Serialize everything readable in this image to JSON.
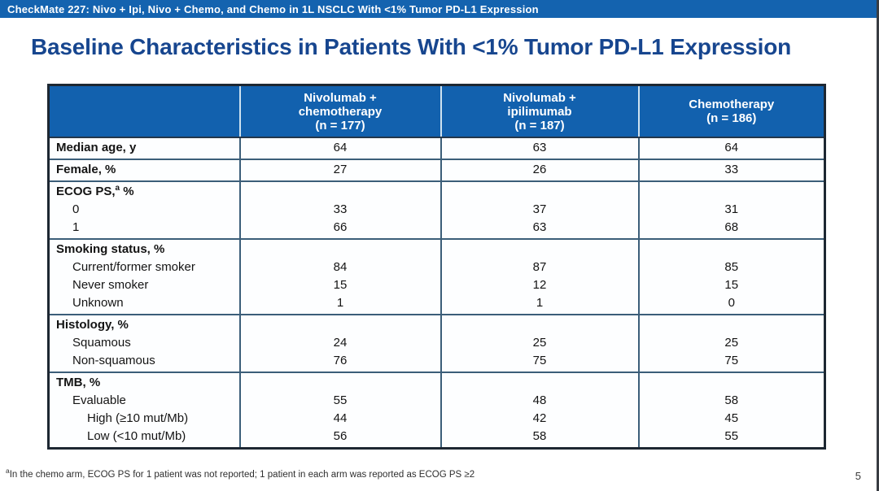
{
  "top_bar": {
    "text": "CheckMate 227: Nivo + Ipi, Nivo + Chemo, and Chemo in 1L NSCLC With <1% Tumor PD-L1 Expression"
  },
  "slide": {
    "title": "Baseline Characteristics in Patients With <1% Tumor PD-L1 Expression",
    "page_number": "5",
    "footnote_marker": "a",
    "footnote_text": "In the chemo arm, ECOG PS for 1 patient was not reported; 1 patient in each arm was reported as ECOG PS ≥2"
  },
  "colors": {
    "top_bar_blue": "#1463af",
    "table_header_blue": "#1261ae",
    "title_blue": "#17468f",
    "grid_line": "#3b5e79",
    "outer_border": "#1d2732"
  },
  "table": {
    "header": {
      "row_label_cell": "",
      "columns": [
        {
          "lines": [
            "Nivolumab +",
            "chemotherapy",
            "(n = 177)"
          ]
        },
        {
          "lines": [
            "Nivolumab +",
            "ipilimumab",
            "(n = 187)"
          ]
        },
        {
          "lines": [
            "Chemotherapy",
            "(n = 186)"
          ]
        }
      ]
    },
    "groups": [
      {
        "rows": [
          {
            "label": {
              "pre": "Median age, y",
              "bold": true,
              "indent": 0
            },
            "values": [
              "64",
              "63",
              "64"
            ]
          }
        ]
      },
      {
        "rows": [
          {
            "label": {
              "pre": "Female, %",
              "bold": true,
              "indent": 0
            },
            "values": [
              "27",
              "26",
              "33"
            ]
          }
        ]
      },
      {
        "rows": [
          {
            "label": {
              "pre": "ECOG PS,",
              "sup": "a",
              "post": " %",
              "bold": true,
              "indent": 0
            },
            "values": [
              "",
              "",
              ""
            ]
          },
          {
            "label": {
              "pre": "0",
              "indent": 1
            },
            "values": [
              "33",
              "37",
              "31"
            ]
          },
          {
            "label": {
              "pre": "1",
              "indent": 1
            },
            "values": [
              "66",
              "63",
              "68"
            ]
          }
        ]
      },
      {
        "rows": [
          {
            "label": {
              "pre": "Smoking status, %",
              "bold": true,
              "indent": 0
            },
            "values": [
              "",
              "",
              ""
            ]
          },
          {
            "label": {
              "pre": "Current/former smoker",
              "indent": 1
            },
            "values": [
              "84",
              "87",
              "85"
            ]
          },
          {
            "label": {
              "pre": "Never smoker",
              "indent": 1
            },
            "values": [
              "15",
              "12",
              "15"
            ]
          },
          {
            "label": {
              "pre": "Unknown",
              "indent": 1
            },
            "values": [
              "1",
              "1",
              "0"
            ]
          }
        ]
      },
      {
        "rows": [
          {
            "label": {
              "pre": "Histology, %",
              "bold": true,
              "indent": 0
            },
            "values": [
              "",
              "",
              ""
            ]
          },
          {
            "label": {
              "pre": "Squamous",
              "indent": 1
            },
            "values": [
              "24",
              "25",
              "25"
            ]
          },
          {
            "label": {
              "pre": "Non-squamous",
              "indent": 1
            },
            "values": [
              "76",
              "75",
              "75"
            ]
          }
        ]
      },
      {
        "rows": [
          {
            "label": {
              "pre": "TMB, %",
              "bold": true,
              "indent": 0
            },
            "values": [
              "",
              "",
              ""
            ]
          },
          {
            "label": {
              "pre": "Evaluable",
              "indent": 1
            },
            "values": [
              "55",
              "48",
              "58"
            ]
          },
          {
            "label": {
              "pre": "High (≥10 mut/Mb)",
              "indent": 2
            },
            "values": [
              "44",
              "42",
              "45"
            ]
          },
          {
            "label": {
              "pre": "Low (<10 mut/Mb)",
              "indent": 2
            },
            "values": [
              "56",
              "58",
              "55"
            ]
          }
        ]
      }
    ]
  }
}
